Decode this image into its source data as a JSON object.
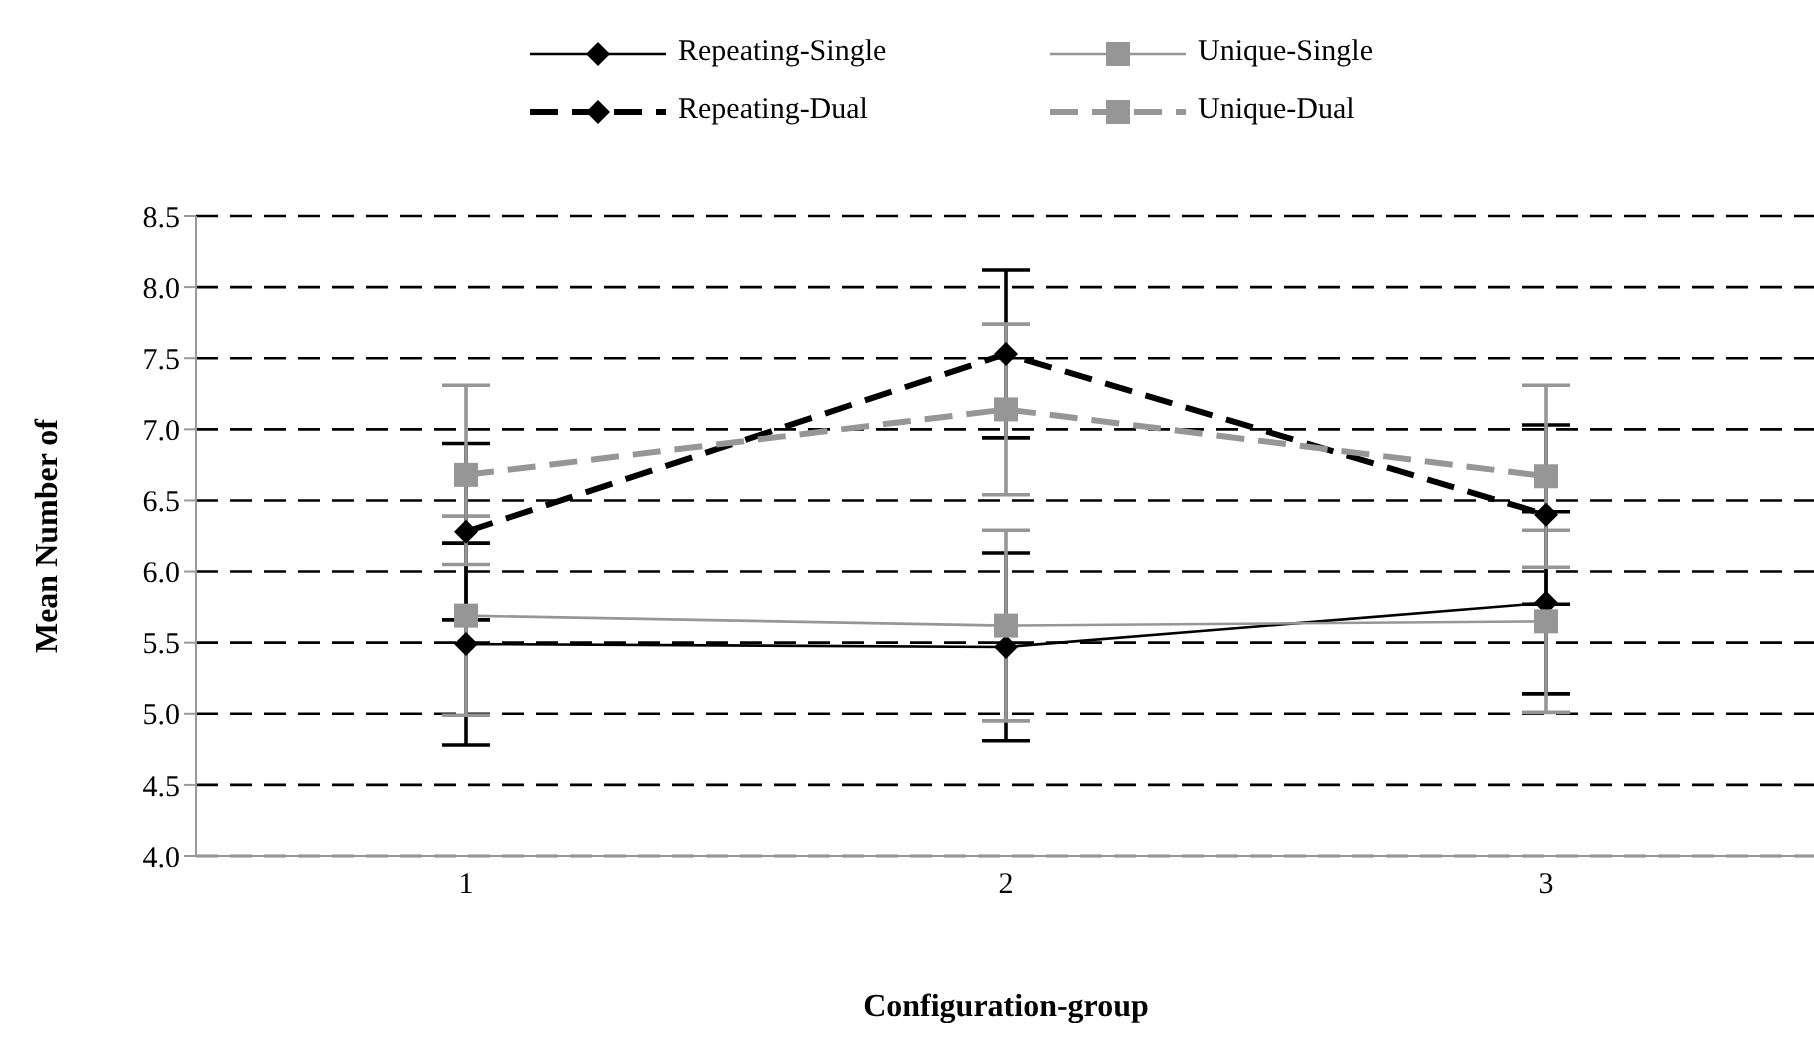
{
  "chart_data": {
    "type": "line",
    "xlabel": "Configuration-group",
    "ylabel": "Mean Number of",
    "categories": [
      "1",
      "2",
      "3"
    ],
    "series": [
      {
        "name": "Repeating-Single",
        "color": "#000000",
        "marker": "diamond",
        "line_style": "solid",
        "values": [
          5.49,
          5.47,
          5.78
        ],
        "errors": [
          0.71,
          0.66,
          0.64
        ]
      },
      {
        "name": "Unique-Single",
        "color": "#969696",
        "marker": "square",
        "line_style": "solid",
        "values": [
          5.69,
          5.62,
          5.65
        ],
        "errors": [
          0.7,
          0.67,
          0.64
        ]
      },
      {
        "name": "Repeating-Dual",
        "color": "#000000",
        "marker": "diamond",
        "line_style": "dashed",
        "values": [
          6.28,
          7.53,
          6.4
        ],
        "errors": [
          0.62,
          0.59,
          0.63
        ]
      },
      {
        "name": "Unique-Dual",
        "color": "#969696",
        "marker": "square",
        "line_style": "dashed",
        "values": [
          6.68,
          7.14,
          6.67
        ],
        "errors": [
          0.63,
          0.6,
          0.64
        ]
      }
    ],
    "ylim": [
      4.0,
      8.5
    ],
    "yticks": [
      {
        "value": 4.0,
        "label": "4.0"
      },
      {
        "value": 4.5,
        "label": "4.5"
      },
      {
        "value": 5.0,
        "label": "5.0"
      },
      {
        "value": 5.5,
        "label": "5.5"
      },
      {
        "value": 6.0,
        "label": "6.0"
      },
      {
        "value": 6.5,
        "label": "6.5"
      },
      {
        "value": 7.0,
        "label": "7.0"
      },
      {
        "value": 7.5,
        "label": "7.5"
      },
      {
        "value": 8.0,
        "label": "8.0"
      },
      {
        "value": 8.5,
        "label": "8.5"
      }
    ],
    "grid": "y",
    "legend": "top"
  }
}
